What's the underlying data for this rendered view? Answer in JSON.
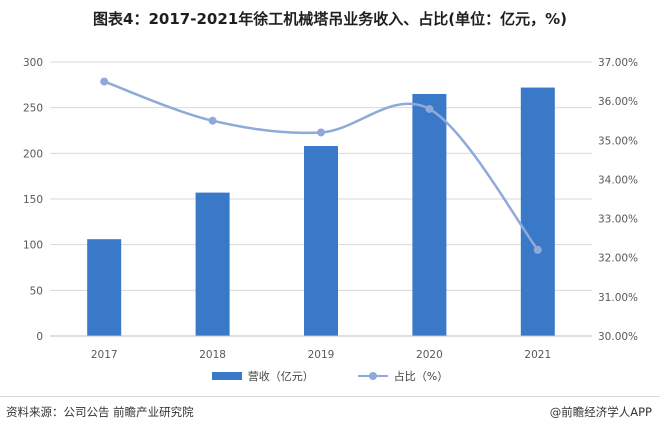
{
  "title": "图表4：2017-2021年徐工机械塔吊业务收入、占比(单位：亿元，%)",
  "colors": {
    "bar": "#3a78c8",
    "line": "#8eaadb",
    "grid": "#d9d9d9"
  },
  "chart_data": {
    "type": "bar",
    "categories": [
      "2017",
      "2018",
      "2019",
      "2020",
      "2021"
    ],
    "series": [
      {
        "name": "营收（亿元）",
        "type": "bar",
        "axis": "left",
        "values": [
          106,
          157,
          208,
          265,
          272
        ]
      },
      {
        "name": "占比（%）",
        "type": "line",
        "axis": "right",
        "smooth": true,
        "values": [
          36.5,
          35.5,
          35.2,
          35.8,
          32.2
        ]
      }
    ],
    "y_left": {
      "min": 0,
      "max": 300,
      "ticks": [
        "0",
        "50",
        "100",
        "150",
        "200",
        "250",
        "300"
      ]
    },
    "y_right": {
      "min": 30,
      "max": 37,
      "ticks": [
        "30.00%",
        "31.00%",
        "32.00%",
        "33.00%",
        "34.00%",
        "35.00%",
        "36.00%",
        "37.00%"
      ]
    },
    "grid": true,
    "legend": "bottom"
  },
  "footer": {
    "source": "资料来源：公司公告 前瞻产业研究院",
    "brand": "@前瞻经济学人APP"
  }
}
